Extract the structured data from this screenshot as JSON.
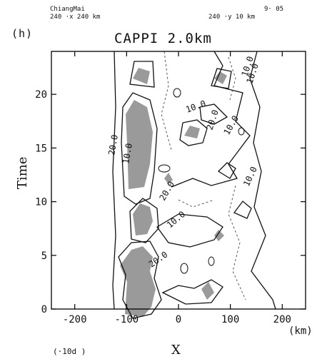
{
  "header": {
    "left_line1": "ChiangMai",
    "left_line2": "240 ·x 240 km",
    "right_line1": "9· 05",
    "right_line2": "240 ·y 10 km"
  },
  "chart_data": {
    "type": "contour",
    "panel_label": "(h)",
    "title": "CAPPI 2.0km",
    "xlabel": "X",
    "x_unit": "(km)",
    "ylabel": "Time",
    "x_ticks": [
      -200,
      -100,
      0,
      100,
      200
    ],
    "y_ticks": [
      0,
      5,
      10,
      15,
      20
    ],
    "xlim": [
      -245,
      245
    ],
    "ylim": [
      0,
      24
    ],
    "contour_labels": [
      "10.0",
      "20.0",
      "10.0",
      "20.0",
      "10.0",
      "20.0",
      "10.0",
      "10.0",
      "20.0",
      "10.0",
      "10.0"
    ],
    "footnote": "(·10d )",
    "colors": {
      "shading": "#9a9a9a",
      "line": "#111111",
      "background": "#ffffff"
    }
  }
}
